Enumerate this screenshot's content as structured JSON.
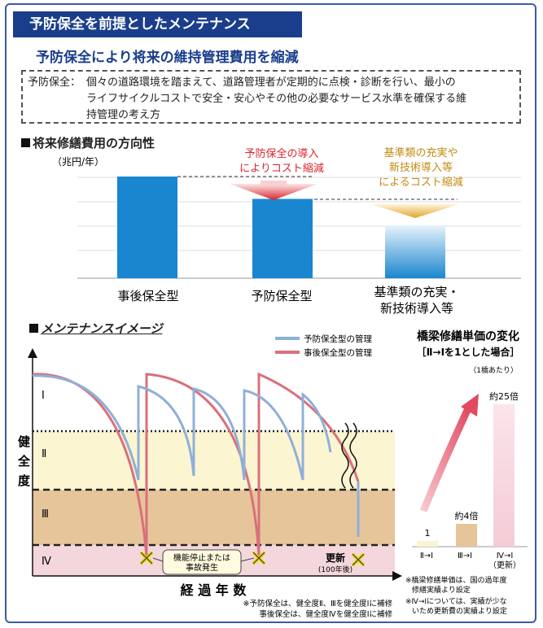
{
  "header": {
    "title": "予防保全を前提としたメンテナンス",
    "subtitle": "予防保全により将来の維持管理費用を縮減"
  },
  "definition": {
    "label": "予防保全：",
    "lines": [
      "個々の道路環境を踏まえて、道路管理者が定期的に点検・診断を行い、最小の",
      "ライフサイクルコストで安全・安心やその他の必要なサービス水準を確保する維",
      "持管理の考え方"
    ]
  },
  "cost_section": {
    "heading": "将来修繕費用の方向性",
    "unit": "（兆円/年）",
    "annotation1": [
      "予防保全の導入",
      "によりコスト縮減"
    ],
    "annotation2": [
      "基準類の充実や",
      "新技術導入等",
      "によるコスト縮減"
    ],
    "categories": [
      "事後保全型",
      "予防保全型",
      "基準類の充実・\n新技術導入等"
    ],
    "category_lines": [
      [
        "事後保全型"
      ],
      [
        "予防保全型"
      ],
      [
        "基準類の充実・",
        "新技術導入等"
      ]
    ]
  },
  "maint_section": {
    "heading": "メンテナンスイメージ",
    "legend": [
      "予防保全型の管理",
      "事後保全型の管理"
    ],
    "yaxis": [
      "健",
      "全",
      "度"
    ],
    "levels": [
      "Ⅰ",
      "Ⅱ",
      "Ⅲ",
      "Ⅳ"
    ],
    "xaxis": "経 過 年 数",
    "callout": [
      "機能停止または",
      "事故発生"
    ],
    "renewal": "更新",
    "renewal_note": "(100年後)",
    "notes": [
      "※予防保全は、健全度Ⅱ、Ⅲを健全度Ⅰに補修",
      "事後保全は、健全度Ⅳを健全度Ⅰに補修"
    ]
  },
  "unit_cost": {
    "heading": "橋梁修繕単価の変化",
    "subheading": "［Ⅱ→Ⅰを1とした場合］",
    "per": "（1橋あたり）",
    "labels": [
      "1",
      "約4倍",
      "約25倍"
    ],
    "categories": [
      "Ⅱ→Ⅰ",
      "Ⅲ→Ⅰ",
      "Ⅳ→Ⅰ"
    ],
    "category_note": "（更新）",
    "notes": [
      "※橋梁修繕単価は、国の過年度",
      "修繕実績より設定",
      "※Ⅳ→Ⅰについては、実績が少な",
      "いため更新費の実績より設定"
    ]
  },
  "chart_data": [
    {
      "type": "bar",
      "title": "将来修繕費用の方向性",
      "ylabel": "（兆円/年）",
      "categories": [
        "事後保全型",
        "予防保全型",
        "基準類の充実・新技術導入等"
      ],
      "values": [
        100,
        78,
        52
      ],
      "note": "relative heights estimated; no numeric axis shown"
    },
    {
      "type": "bar",
      "title": "橋梁修繕単価の変化",
      "categories": [
        "Ⅱ→Ⅰ",
        "Ⅲ→Ⅰ",
        "Ⅳ→Ⅰ"
      ],
      "values": [
        1,
        4,
        25
      ]
    }
  ],
  "colors": {
    "navy": "#1a3e8c",
    "bar_blue": "#1a86cf",
    "preventive_line": "#8fb0d8",
    "reactive_line": "#d9707c",
    "band_II": "#fcf5d2",
    "band_III": "#e7c59a",
    "band_IV": "#f4d7dc",
    "arrow_red": "#d6262f",
    "arrow_orange": "#e0a427"
  }
}
